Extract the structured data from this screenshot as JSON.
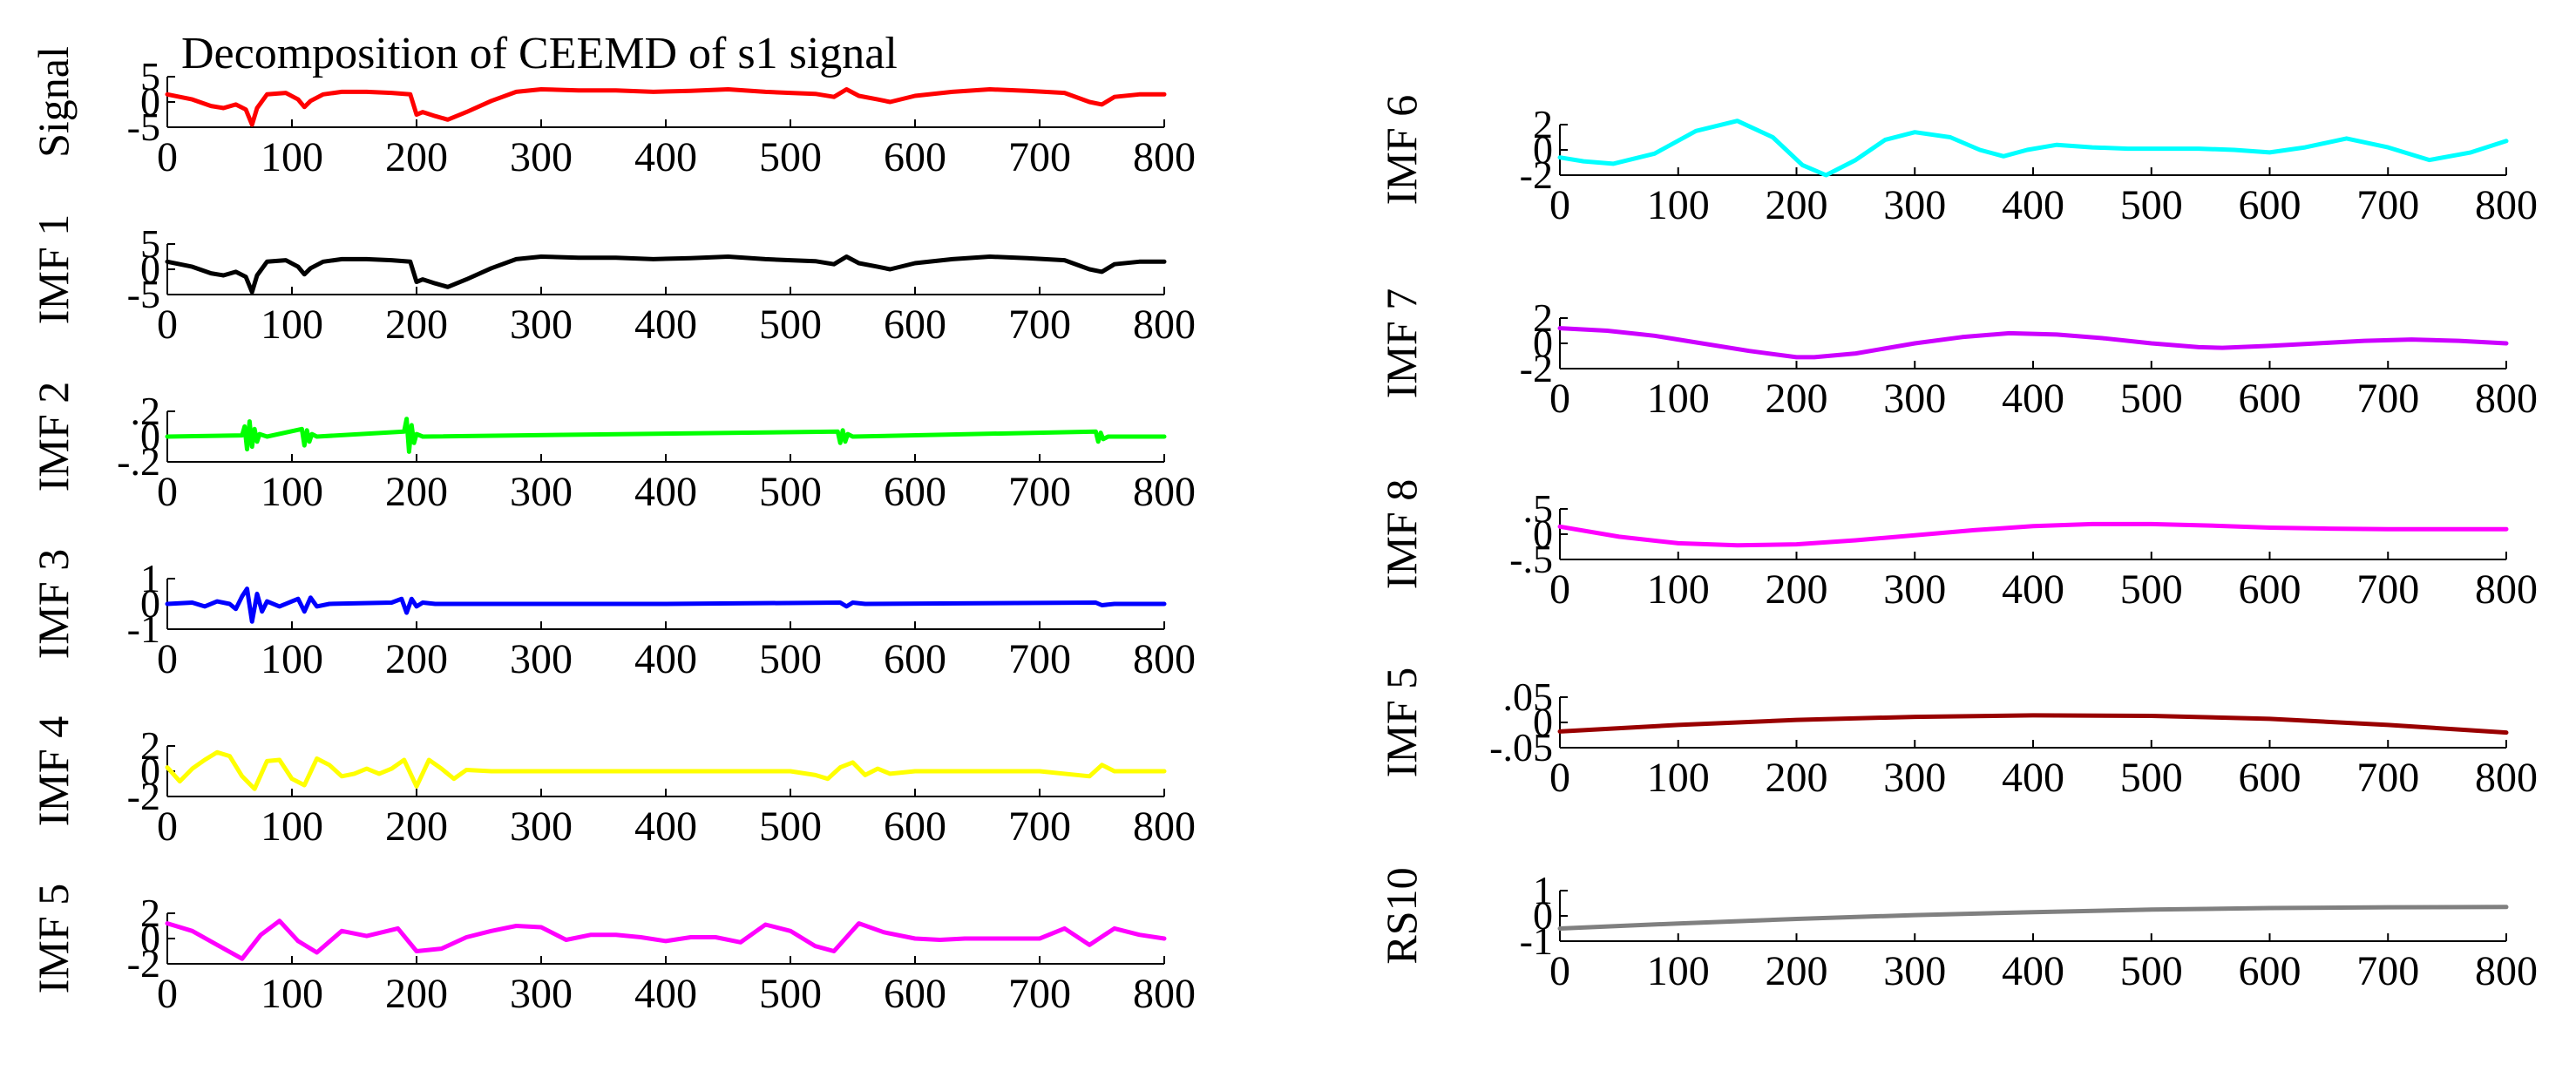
{
  "title": "Decomposition of CEEMD  of s1 signal",
  "chart_data": [
    {
      "type": "line",
      "ylabel": "Signal",
      "color": "#ff0000",
      "xlim": [
        0,
        800
      ],
      "ylim": [
        -5,
        5
      ],
      "xticks": [
        0,
        100,
        200,
        300,
        400,
        500,
        600,
        700,
        800
      ],
      "yticks": [
        5,
        0,
        -5
      ],
      "x": [
        0,
        10,
        20,
        35,
        45,
        55,
        63,
        68,
        72,
        80,
        95,
        105,
        110,
        115,
        125,
        140,
        160,
        180,
        195,
        200,
        205,
        215,
        225,
        240,
        260,
        280,
        300,
        330,
        360,
        390,
        420,
        450,
        480,
        500,
        520,
        535,
        545,
        555,
        570,
        580,
        600,
        630,
        660,
        690,
        720,
        740,
        750,
        760,
        780,
        800
      ],
      "values": [
        1.5,
        1.0,
        0.5,
        -0.8,
        -1.2,
        -0.5,
        -1.5,
        -4.5,
        -1.2,
        1.5,
        1.8,
        0.5,
        -1.0,
        0.2,
        1.5,
        2.0,
        2.0,
        1.8,
        1.5,
        -2.5,
        -2.0,
        -2.8,
        -3.5,
        -2.0,
        0.2,
        2.0,
        2.5,
        2.3,
        2.3,
        2.0,
        2.2,
        2.5,
        2.0,
        1.8,
        1.6,
        1.0,
        2.5,
        1.2,
        0.5,
        0.0,
        1.2,
        2.0,
        2.5,
        2.2,
        1.8,
        0.0,
        -0.5,
        1.0,
        1.5,
        1.5
      ]
    },
    {
      "type": "line",
      "ylabel": "IMF 1",
      "color": "#000000",
      "xlim": [
        0,
        800
      ],
      "ylim": [
        -5,
        5
      ],
      "xticks": [
        0,
        100,
        200,
        300,
        400,
        500,
        600,
        700,
        800
      ],
      "yticks": [
        5,
        0,
        -5
      ],
      "x": [
        0,
        10,
        20,
        35,
        45,
        55,
        63,
        68,
        72,
        80,
        95,
        105,
        110,
        115,
        125,
        140,
        160,
        180,
        195,
        200,
        205,
        215,
        225,
        240,
        260,
        280,
        300,
        330,
        360,
        390,
        420,
        450,
        480,
        500,
        520,
        535,
        545,
        555,
        570,
        580,
        600,
        630,
        660,
        690,
        720,
        740,
        750,
        760,
        780,
        800
      ],
      "values": [
        1.5,
        1.0,
        0.5,
        -0.8,
        -1.2,
        -0.5,
        -1.5,
        -4.5,
        -1.2,
        1.5,
        1.8,
        0.5,
        -1.0,
        0.2,
        1.5,
        2.0,
        2.0,
        1.8,
        1.5,
        -2.5,
        -2.0,
        -2.8,
        -3.5,
        -2.0,
        0.2,
        2.0,
        2.5,
        2.3,
        2.3,
        2.0,
        2.2,
        2.5,
        2.0,
        1.8,
        1.6,
        1.0,
        2.5,
        1.2,
        0.5,
        0.0,
        1.2,
        2.0,
        2.5,
        2.2,
        1.8,
        0.0,
        -0.5,
        1.0,
        1.5,
        1.5
      ]
    },
    {
      "type": "line",
      "ylabel": "IMF 2",
      "color": "#00ff00",
      "xlim": [
        0,
        800
      ],
      "ylim": [
        -0.2,
        0.2
      ],
      "xticks": [
        0,
        100,
        200,
        300,
        400,
        500,
        600,
        700,
        800
      ],
      "yticks": [
        0.2,
        0,
        -0.2
      ],
      "x": [
        0,
        60,
        62,
        64,
        66,
        68,
        70,
        72,
        74,
        80,
        108,
        110,
        112,
        114,
        116,
        120,
        190,
        192,
        194,
        196,
        198,
        200,
        205,
        538,
        540,
        542,
        544,
        546,
        550,
        745,
        747,
        749,
        751,
        755,
        800
      ],
      "values": [
        0,
        0.01,
        0.08,
        -0.1,
        0.12,
        -0.08,
        0.06,
        -0.04,
        0.02,
        0,
        0.06,
        -0.07,
        0.05,
        -0.04,
        0.02,
        0,
        0.04,
        0.14,
        -0.12,
        0.09,
        -0.05,
        0.02,
        0,
        0.04,
        -0.05,
        0.05,
        -0.04,
        0.02,
        0,
        0.04,
        -0.04,
        0.03,
        -0.02,
        0,
        0
      ]
    },
    {
      "type": "line",
      "ylabel": "IMF 3",
      "color": "#0000ff",
      "xlim": [
        0,
        800
      ],
      "ylim": [
        -1,
        1
      ],
      "xticks": [
        0,
        100,
        200,
        300,
        400,
        500,
        600,
        700,
        800
      ],
      "yticks": [
        1,
        0,
        -1
      ],
      "x": [
        0,
        20,
        30,
        40,
        50,
        55,
        60,
        64,
        68,
        72,
        76,
        80,
        90,
        100,
        105,
        110,
        115,
        120,
        130,
        180,
        188,
        192,
        196,
        200,
        205,
        215,
        400,
        540,
        545,
        550,
        560,
        745,
        750,
        760,
        800
      ],
      "values": [
        0,
        0.05,
        -0.1,
        0.1,
        0.0,
        -0.2,
        0.3,
        0.6,
        -0.7,
        0.4,
        -0.3,
        0.1,
        -0.1,
        0.1,
        0.2,
        -0.3,
        0.25,
        -0.1,
        0,
        0.05,
        0.2,
        -0.35,
        0.2,
        -0.1,
        0.05,
        0,
        0,
        0.05,
        -0.1,
        0.05,
        0,
        0.05,
        -0.05,
        0,
        0
      ]
    },
    {
      "type": "line",
      "ylabel": "IMF 4",
      "color": "#ffff00",
      "xlim": [
        0,
        800
      ],
      "ylim": [
        -2,
        2
      ],
      "xticks": [
        0,
        100,
        200,
        300,
        400,
        500,
        600,
        700,
        800
      ],
      "yticks": [
        2,
        0,
        -2
      ],
      "x": [
        0,
        10,
        20,
        30,
        40,
        50,
        60,
        70,
        80,
        90,
        100,
        110,
        120,
        130,
        140,
        150,
        160,
        170,
        180,
        190,
        200,
        210,
        220,
        230,
        240,
        260,
        300,
        400,
        500,
        520,
        530,
        540,
        550,
        560,
        570,
        580,
        600,
        650,
        700,
        740,
        750,
        760,
        800
      ],
      "values": [
        0.3,
        -0.8,
        0.2,
        0.9,
        1.5,
        1.2,
        -0.4,
        -1.4,
        0.8,
        0.9,
        -0.6,
        -1.1,
        1.0,
        0.5,
        -0.4,
        -0.2,
        0.2,
        -0.2,
        0.2,
        0.9,
        -1.2,
        0.9,
        0.2,
        -0.6,
        0.1,
        0.0,
        0.0,
        0.0,
        0.0,
        -0.3,
        -0.6,
        0.3,
        0.7,
        -0.3,
        0.2,
        -0.2,
        0.0,
        0.0,
        0.0,
        -0.4,
        0.5,
        0.0,
        0.0
      ]
    },
    {
      "type": "line",
      "ylabel": "IMF 5",
      "color": "#ff00ff",
      "xlim": [
        0,
        800
      ],
      "ylim": [
        -2,
        2
      ],
      "xticks": [
        0,
        100,
        200,
        300,
        400,
        500,
        600,
        700,
        800
      ],
      "yticks": [
        2,
        0,
        -2
      ],
      "x": [
        0,
        20,
        40,
        60,
        75,
        90,
        105,
        120,
        140,
        160,
        185,
        200,
        220,
        240,
        260,
        280,
        300,
        320,
        340,
        360,
        380,
        400,
        420,
        440,
        460,
        480,
        500,
        520,
        535,
        555,
        575,
        600,
        620,
        640,
        660,
        680,
        700,
        720,
        740,
        760,
        780,
        800
      ],
      "values": [
        1.2,
        0.6,
        -0.5,
        -1.6,
        0.3,
        1.4,
        -0.2,
        -1.1,
        0.6,
        0.2,
        0.8,
        -1.0,
        -0.8,
        0.1,
        0.6,
        1.0,
        0.9,
        -0.1,
        0.3,
        0.3,
        0.1,
        -0.2,
        0.1,
        0.1,
        -0.3,
        1.1,
        0.6,
        -0.6,
        -1.0,
        1.2,
        0.5,
        0.0,
        -0.1,
        0.0,
        0.0,
        0.0,
        0.0,
        0.8,
        -0.5,
        0.8,
        0.3,
        0.0
      ]
    },
    {
      "type": "line",
      "ylabel": "IMF 6",
      "color": "#00ffff",
      "xlim": [
        0,
        800
      ],
      "ylim": [
        -2,
        2
      ],
      "xticks": [
        0,
        100,
        200,
        300,
        400,
        500,
        600,
        700,
        800
      ],
      "yticks": [
        2,
        0,
        -2
      ],
      "x": [
        0,
        20,
        45,
        80,
        115,
        150,
        180,
        205,
        225,
        250,
        275,
        300,
        330,
        355,
        375,
        395,
        420,
        450,
        480,
        510,
        540,
        570,
        600,
        630,
        665,
        700,
        735,
        770,
        800
      ],
      "values": [
        -0.6,
        -0.9,
        -1.1,
        -0.3,
        1.5,
        2.3,
        1.0,
        -1.2,
        -2.0,
        -0.8,
        0.8,
        1.4,
        1.0,
        0.0,
        -0.5,
        0.0,
        0.4,
        0.2,
        0.1,
        0.1,
        0.1,
        0.0,
        -0.2,
        0.2,
        0.9,
        0.2,
        -0.8,
        -0.2,
        0.7
      ]
    },
    {
      "type": "line",
      "ylabel": "IMF 7",
      "color": "#cc00ff",
      "xlim": [
        0,
        800
      ],
      "ylim": [
        -2,
        2
      ],
      "xticks": [
        0,
        100,
        200,
        300,
        400,
        500,
        600,
        700,
        800
      ],
      "yticks": [
        2,
        0,
        -2
      ],
      "x": [
        0,
        40,
        80,
        120,
        160,
        200,
        215,
        250,
        300,
        340,
        380,
        420,
        460,
        500,
        540,
        560,
        600,
        640,
        680,
        720,
        760,
        800
      ],
      "values": [
        1.2,
        1.0,
        0.6,
        0.0,
        -0.6,
        -1.1,
        -1.1,
        -0.8,
        0.0,
        0.5,
        0.8,
        0.7,
        0.4,
        0.0,
        -0.3,
        -0.35,
        -0.2,
        0.0,
        0.2,
        0.3,
        0.2,
        0.0
      ]
    },
    {
      "type": "line",
      "ylabel": "IMF 8",
      "color": "#ff00ff",
      "xlim": [
        0,
        800
      ],
      "ylim": [
        -0.5,
        0.5
      ],
      "xticks": [
        0,
        100,
        200,
        300,
        400,
        500,
        600,
        700,
        800
      ],
      "yticks": [
        0.5,
        0,
        -0.5
      ],
      "x": [
        0,
        50,
        100,
        150,
        200,
        250,
        300,
        350,
        400,
        450,
        500,
        550,
        600,
        650,
        700,
        750,
        800
      ],
      "values": [
        0.15,
        -0.05,
        -0.18,
        -0.22,
        -0.2,
        -0.12,
        -0.02,
        0.08,
        0.16,
        0.2,
        0.2,
        0.17,
        0.13,
        0.11,
        0.1,
        0.1,
        0.1
      ]
    },
    {
      "type": "line",
      "ylabel": "IMF 5",
      "color": "#990000",
      "xlim": [
        0,
        800
      ],
      "ylim": [
        -0.05,
        0.05
      ],
      "xticks": [
        0,
        100,
        200,
        300,
        400,
        500,
        600,
        700,
        800
      ],
      "yticks": [
        0.05,
        0,
        -0.05
      ],
      "x": [
        0,
        100,
        200,
        300,
        400,
        500,
        600,
        700,
        800
      ],
      "values": [
        -0.018,
        -0.005,
        0.005,
        0.011,
        0.014,
        0.013,
        0.007,
        -0.005,
        -0.02
      ]
    },
    {
      "type": "line",
      "ylabel": "RS10",
      "color": "#808080",
      "xlim": [
        0,
        800
      ],
      "ylim": [
        -1,
        1
      ],
      "xticks": [
        0,
        100,
        200,
        300,
        400,
        500,
        600,
        700,
        800
      ],
      "yticks": [
        1,
        0,
        -1
      ],
      "x": [
        0,
        100,
        200,
        300,
        400,
        500,
        600,
        700,
        800
      ],
      "values": [
        -0.5,
        -0.3,
        -0.12,
        0.03,
        0.15,
        0.25,
        0.31,
        0.34,
        0.35
      ]
    }
  ]
}
